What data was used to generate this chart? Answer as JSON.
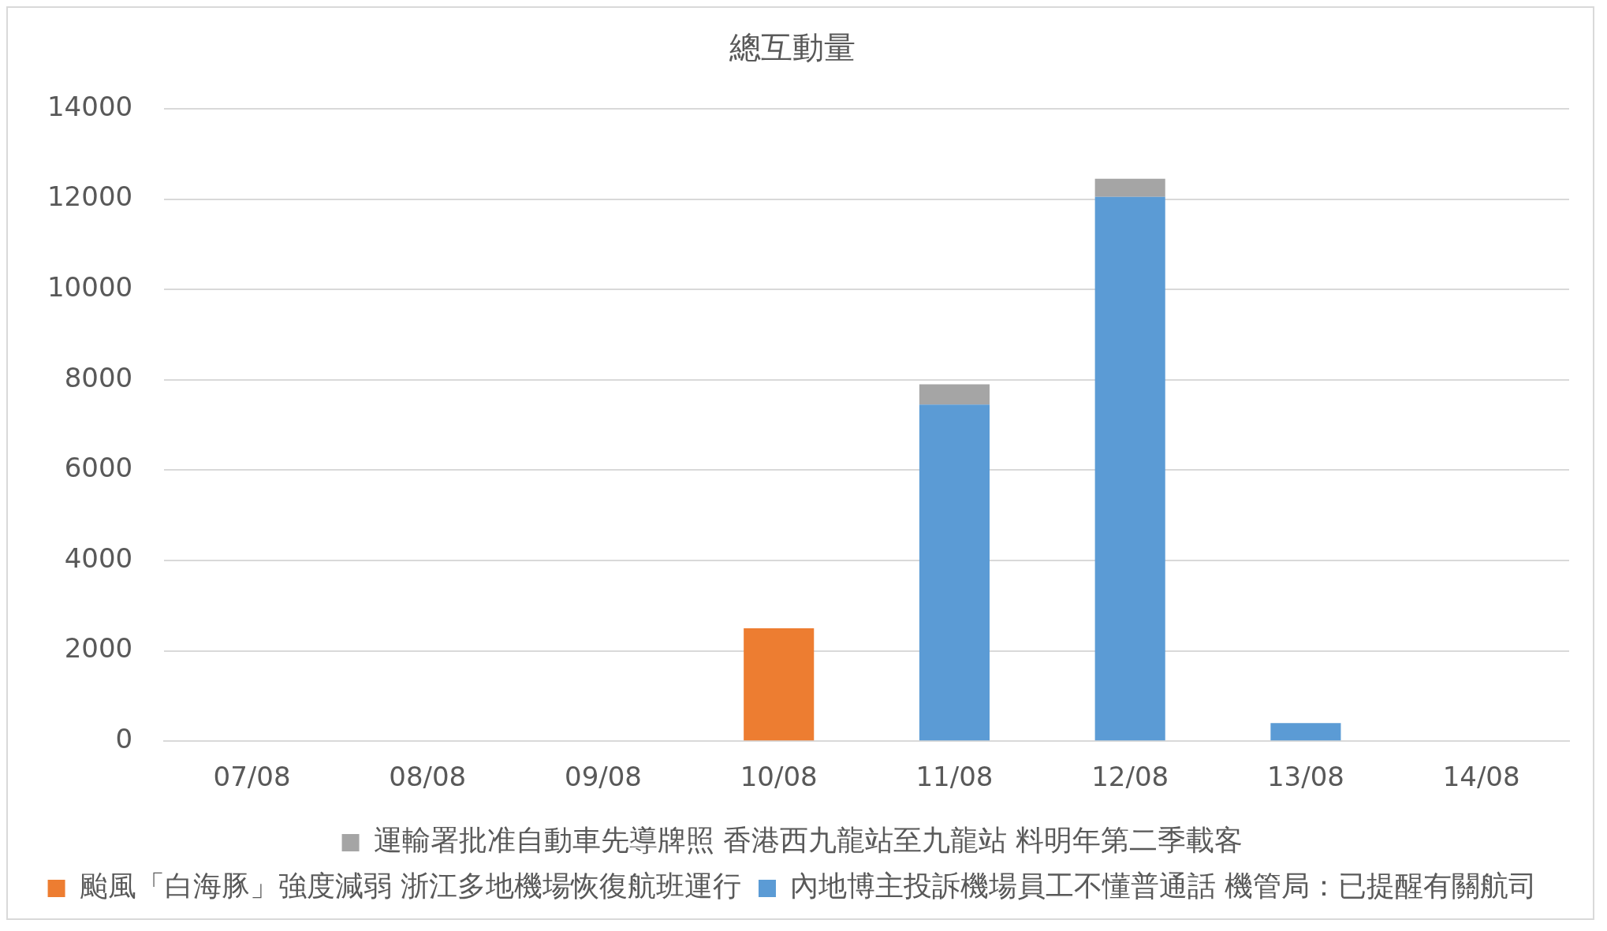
{
  "chart_data": {
    "type": "bar",
    "title": "總互動量",
    "stacked": true,
    "categories": [
      "07/08",
      "08/08",
      "09/08",
      "10/08",
      "11/08",
      "12/08",
      "13/08",
      "14/08"
    ],
    "series": [
      {
        "name": "內地博主投訴機場員工不懂普通話 機管局：已提醒有關航司",
        "color": "#5b9bd5",
        "values": [
          0,
          0,
          0,
          0,
          7450,
          12050,
          400,
          0
        ]
      },
      {
        "name": "颱風「白海豚」強度減弱 浙江多地機場恢復航班運行",
        "color": "#ed7d31",
        "values": [
          0,
          0,
          0,
          2500,
          0,
          0,
          0,
          0
        ]
      },
      {
        "name": "運輸署批准自動車先導牌照 香港西九龍站至九龍站 料明年第二季載客",
        "color": "#a5a5a5",
        "values": [
          0,
          0,
          0,
          0,
          450,
          400,
          0,
          0
        ]
      }
    ],
    "ylim": [
      0,
      14000
    ],
    "yticks": [
      0,
      2000,
      4000,
      6000,
      8000,
      10000,
      12000,
      14000
    ],
    "grid": "y",
    "legend": "bottom"
  }
}
